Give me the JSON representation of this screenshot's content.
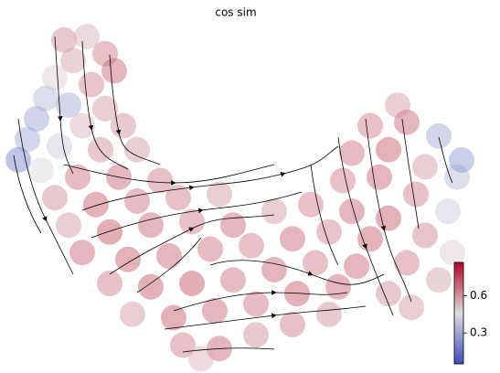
{
  "chart_data": {
    "type": "scatter",
    "title": "cos sim",
    "x": [
      12,
      17,
      21,
      14,
      23,
      10,
      18,
      8,
      13,
      21,
      6,
      16,
      25,
      4,
      11,
      20,
      28,
      7,
      15,
      24,
      33,
      10,
      19,
      28,
      37,
      46,
      13,
      22,
      31,
      40,
      49,
      58,
      66,
      16,
      26,
      35,
      44,
      53,
      62,
      70,
      22,
      31,
      40,
      49,
      58,
      67,
      27,
      36,
      45,
      54,
      63,
      72,
      38,
      46,
      54,
      62,
      70,
      42,
      76,
      83,
      88,
      79,
      87,
      94,
      75,
      83,
      91,
      97,
      73,
      81,
      89,
      96,
      75,
      83,
      91,
      98,
      79,
      87,
      94,
      85,
      2,
      99
    ],
    "y": [
      95,
      96,
      91,
      89,
      86,
      84,
      82,
      78,
      76,
      75,
      72,
      70,
      70,
      66,
      64,
      63,
      63,
      57,
      55,
      55,
      54,
      49,
      47,
      48,
      49,
      50,
      41,
      39,
      41,
      42,
      41,
      45,
      47,
      33,
      31,
      32,
      34,
      35,
      37,
      39,
      24,
      23,
      24,
      25,
      28,
      30,
      15,
      14,
      16,
      18,
      21,
      23,
      6,
      5,
      9,
      12,
      15,
      2,
      29,
      21,
      17,
      37,
      30,
      25,
      45,
      43,
      38,
      33,
      54,
      55,
      50,
      45,
      62,
      63,
      58,
      55,
      70,
      71,
      67,
      76,
      60,
      60
    ],
    "values": [
      0.62,
      0.55,
      0.66,
      0.58,
      0.7,
      0.5,
      0.64,
      0.35,
      0.3,
      0.6,
      0.28,
      0.55,
      0.62,
      0.3,
      0.4,
      0.62,
      0.6,
      0.45,
      0.68,
      0.7,
      0.66,
      0.62,
      0.72,
      0.68,
      0.66,
      0.6,
      0.6,
      0.74,
      0.7,
      0.66,
      0.7,
      0.6,
      0.66,
      0.7,
      0.72,
      0.7,
      0.68,
      0.66,
      0.7,
      0.64,
      0.66,
      0.72,
      0.74,
      0.68,
      0.7,
      0.66,
      0.6,
      0.72,
      0.7,
      0.68,
      0.72,
      0.7,
      0.66,
      0.7,
      0.62,
      0.66,
      0.62,
      0.55,
      0.7,
      0.62,
      0.6,
      0.72,
      0.66,
      0.58,
      0.7,
      0.72,
      0.64,
      0.5,
      0.66,
      0.7,
      0.66,
      0.4,
      0.68,
      0.72,
      0.6,
      0.35,
      0.66,
      0.7,
      0.3,
      0.6,
      0.2,
      0.25
    ],
    "xlim": [
      0,
      100
    ],
    "ylim": [
      0,
      100
    ],
    "colormap": "coolwarm",
    "clim": [
      0.05,
      0.87
    ],
    "cticks": [
      0.3,
      0.6
    ]
  }
}
